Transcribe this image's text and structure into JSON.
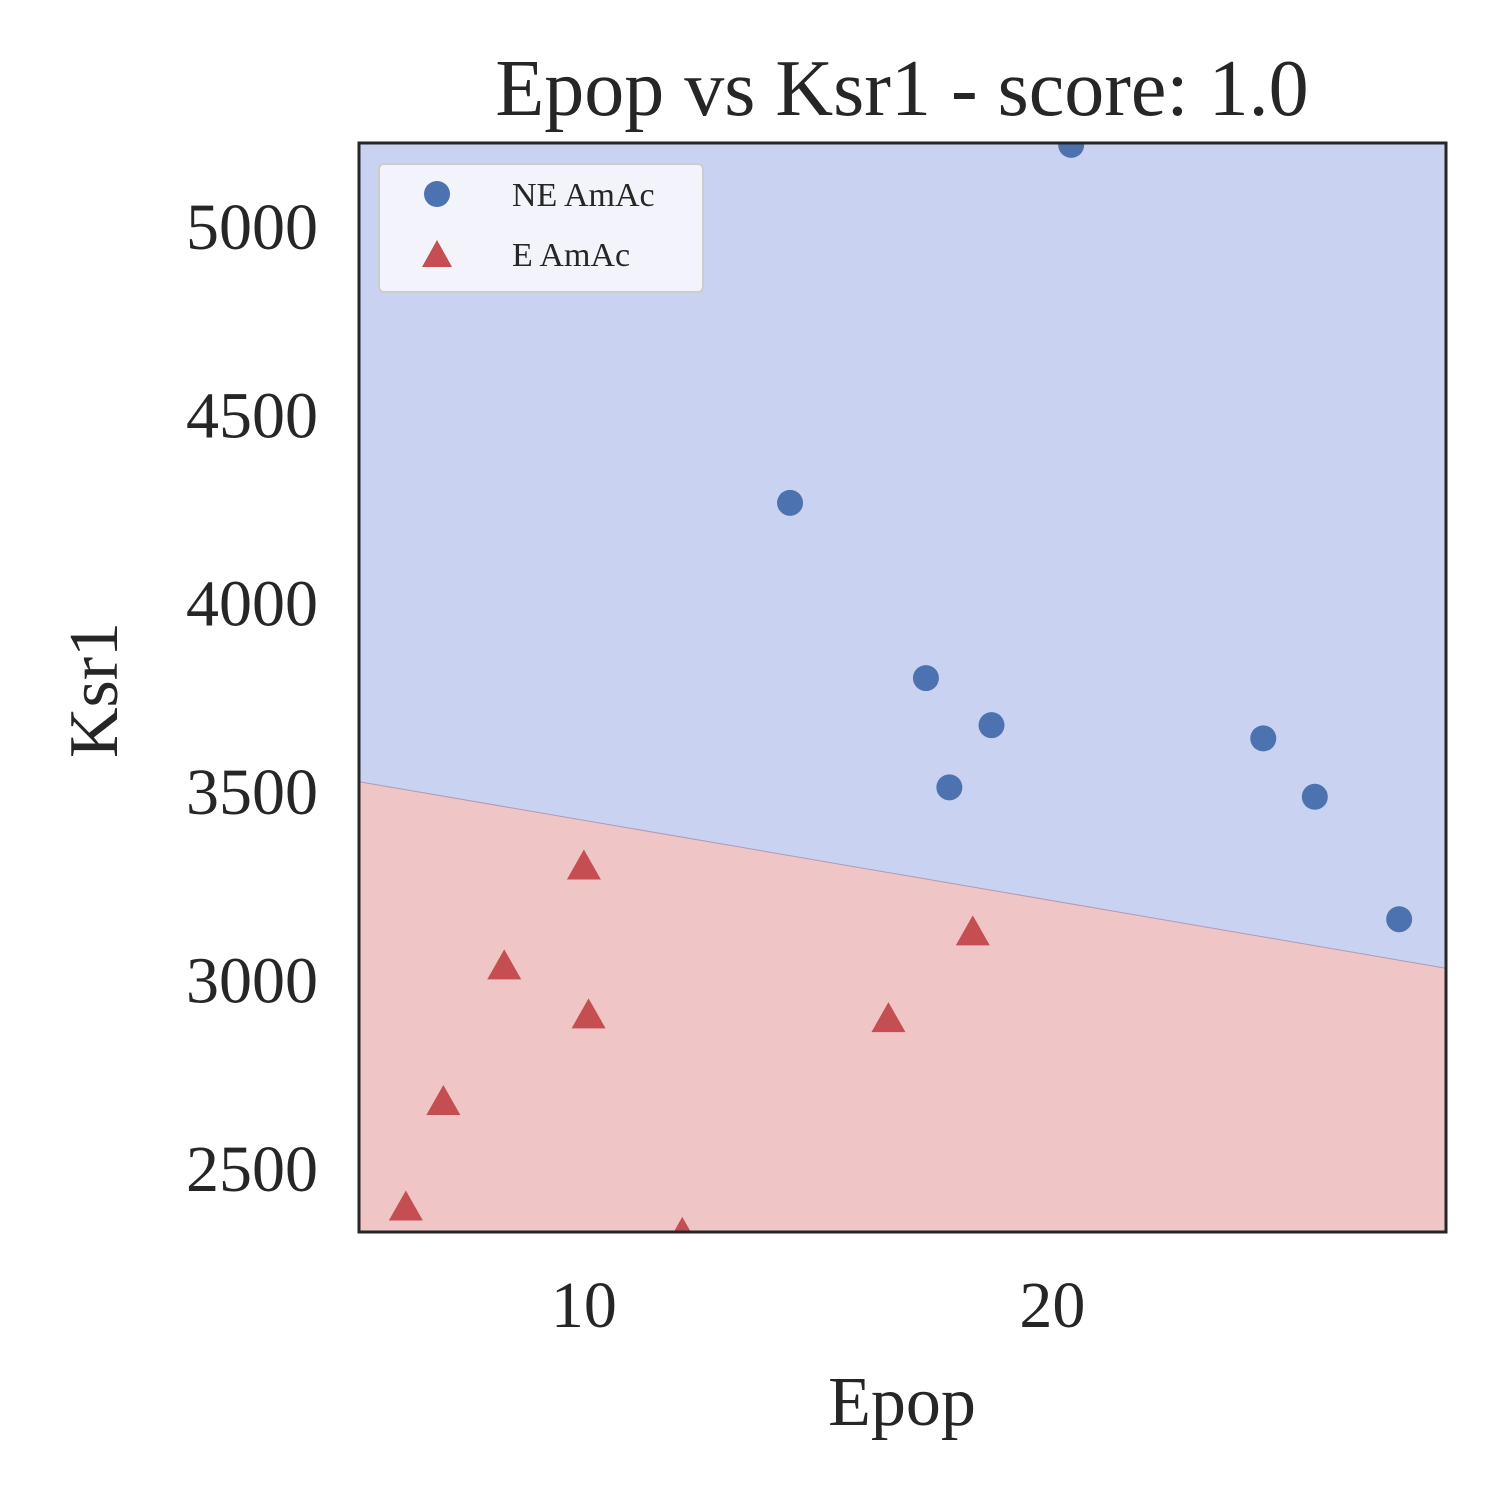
{
  "chart_data": {
    "type": "scatter",
    "title": "Epop vs Ksr1 - score: 1.0",
    "xlabel": "Epop",
    "ylabel": "Ksr1",
    "xlim": [
      5.2,
      28.4
    ],
    "ylim": [
      2330,
      5220
    ],
    "xticks": [
      10,
      20
    ],
    "yticks": [
      2500,
      3000,
      3500,
      4000,
      4500,
      5000
    ],
    "grid": false,
    "legend_position": "top-left",
    "decision_boundary": {
      "points": [
        [
          5.2,
          3525
        ],
        [
          28.4,
          3030
        ]
      ],
      "above_region": "NE AmAc",
      "below_region": "E AmAc"
    },
    "series": [
      {
        "name": "NE AmAc",
        "marker": "circle",
        "color": "#4c72b0",
        "points": [
          [
            20.4,
            5215
          ],
          [
            14.4,
            4265
          ],
          [
            17.3,
            3800
          ],
          [
            18.7,
            3675
          ],
          [
            17.8,
            3510
          ],
          [
            24.5,
            3640
          ],
          [
            25.6,
            3485
          ],
          [
            27.4,
            3160
          ]
        ]
      },
      {
        "name": "E AmAc",
        "marker": "triangle",
        "color": "#c44e52",
        "points": [
          [
            10.0,
            3300
          ],
          [
            8.3,
            3035
          ],
          [
            10.1,
            2905
          ],
          [
            16.5,
            2895
          ],
          [
            18.3,
            3125
          ],
          [
            7.0,
            2675
          ],
          [
            6.2,
            2395
          ],
          [
            12.1,
            2325
          ]
        ]
      }
    ],
    "colors": {
      "upper_region": "#c9d2f1",
      "lower_region": "#efc5c5",
      "legend_background": "#f3f4fb",
      "frame": "#262626"
    }
  }
}
